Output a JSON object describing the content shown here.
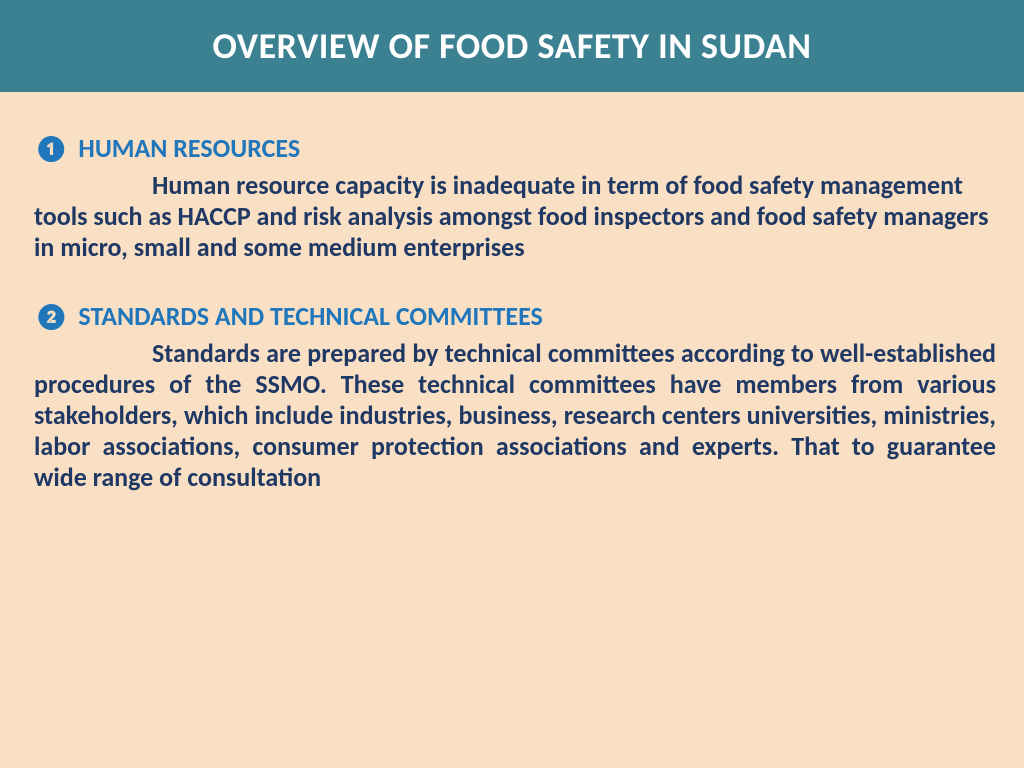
{
  "header": {
    "title": "OVERVIEW OF FOOD SAFETY IN SUDAN"
  },
  "sections": [
    {
      "bullet": "❶",
      "heading": "HUMAN RESOURCES",
      "body": "Human resource capacity is inadequate in term of food safety management tools such as HACCP  and risk analysis amongst food inspectors and food safety managers in micro, small and some medium enterprises",
      "justify": false
    },
    {
      "bullet": "❷",
      "heading": "STANDARDS AND TECHNICAL COMMITTEES",
      "body": "Standards are prepared by technical committees according to well-established procedures of the SSMO. These technical committees have members from various stakeholders, which include industries, business, research centers universities, ministries, labor associations, consumer protection associations and experts. That to guarantee wide range of consultation",
      "justify": true
    }
  ],
  "colors": {
    "header_bg": "#3b8191",
    "header_text": "#ffffff",
    "page_bg": "#f9e0c5",
    "heading_text": "#2076ba",
    "body_text": "#1f3864"
  },
  "typography": {
    "header_fontsize": 36,
    "heading_fontsize": 26,
    "body_fontsize": 26,
    "font_family": "Calibri"
  }
}
